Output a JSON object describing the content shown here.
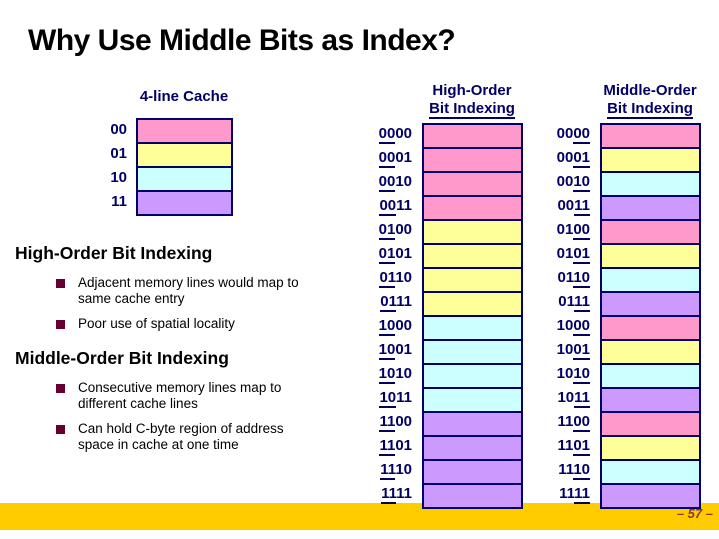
{
  "title": "Why Use Middle Bits as Index?",
  "palette": {
    "pink": "#FF99CC",
    "yellow": "#FFFF99",
    "cyan": "#CCFFFF",
    "purple": "#CC99FF",
    "navy": "#000066",
    "gold_bar": "#FFCC00",
    "bullet_square": "#660033",
    "page_number_color": "#993333"
  },
  "cache": {
    "title": "4-line Cache",
    "rows": [
      {
        "label": "00",
        "color": "pink"
      },
      {
        "label": "01",
        "color": "yellow"
      },
      {
        "label": "10",
        "color": "cyan"
      },
      {
        "label": "11",
        "color": "purple"
      }
    ]
  },
  "sections": [
    {
      "heading": "High-Order Bit Indexing",
      "bullets": [
        "Adjacent memory lines would map to\nsame cache entry",
        "Poor use of spatial locality"
      ]
    },
    {
      "heading": "Middle-Order Bit Indexing",
      "bullets": [
        "Consecutive memory lines map to\ndifferent cache lines",
        "Can hold C-byte region of address\nspace in cache at one time"
      ]
    }
  ],
  "memory_columns": [
    {
      "header_line1": "High-Order",
      "header_line2": "Bit Indexing",
      "underline": "first2",
      "rows": [
        {
          "label": "0000",
          "color": "pink"
        },
        {
          "label": "0001",
          "color": "pink"
        },
        {
          "label": "0010",
          "color": "pink"
        },
        {
          "label": "0011",
          "color": "pink"
        },
        {
          "label": "0100",
          "color": "yellow"
        },
        {
          "label": "0101",
          "color": "yellow"
        },
        {
          "label": "0110",
          "color": "yellow"
        },
        {
          "label": "0111",
          "color": "yellow"
        },
        {
          "label": "1000",
          "color": "cyan"
        },
        {
          "label": "1001",
          "color": "cyan"
        },
        {
          "label": "1010",
          "color": "cyan"
        },
        {
          "label": "1011",
          "color": "cyan"
        },
        {
          "label": "1100",
          "color": "purple"
        },
        {
          "label": "1101",
          "color": "purple"
        },
        {
          "label": "1110",
          "color": "purple"
        },
        {
          "label": "1111",
          "color": "purple"
        }
      ]
    },
    {
      "header_line1": "Middle-Order",
      "header_line2": "Bit Indexing",
      "underline": "last2",
      "rows": [
        {
          "label": "0000",
          "color": "pink"
        },
        {
          "label": "0001",
          "color": "yellow"
        },
        {
          "label": "0010",
          "color": "cyan"
        },
        {
          "label": "0011",
          "color": "purple"
        },
        {
          "label": "0100",
          "color": "pink"
        },
        {
          "label": "0101",
          "color": "yellow"
        },
        {
          "label": "0110",
          "color": "cyan"
        },
        {
          "label": "0111",
          "color": "purple"
        },
        {
          "label": "1000",
          "color": "pink"
        },
        {
          "label": "1001",
          "color": "yellow"
        },
        {
          "label": "1010",
          "color": "cyan"
        },
        {
          "label": "1011",
          "color": "purple"
        },
        {
          "label": "1100",
          "color": "pink"
        },
        {
          "label": "1101",
          "color": "yellow"
        },
        {
          "label": "1110",
          "color": "cyan"
        },
        {
          "label": "1111",
          "color": "purple"
        }
      ]
    }
  ],
  "footer": {
    "page_number": "– 57 –"
  }
}
